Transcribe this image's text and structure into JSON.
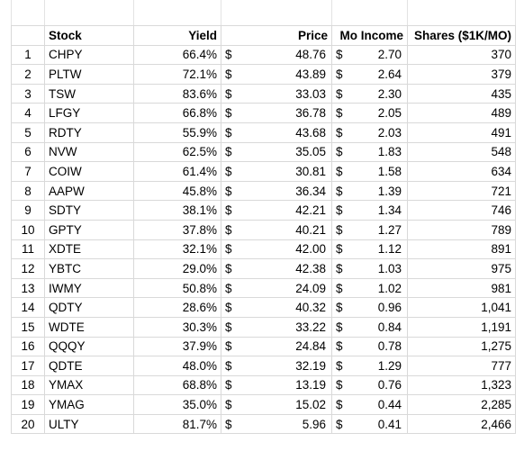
{
  "header": {
    "stock": "Stock",
    "yield": "Yield",
    "price": "Price",
    "mo_income": "Mo Income",
    "shares": "Shares ($1K/MO)",
    "currency": "$"
  },
  "rows": [
    {
      "n": "1",
      "stock": "CHPY",
      "yield": "66.4%",
      "price": "48.76",
      "mo": "2.70",
      "shares": "370"
    },
    {
      "n": "2",
      "stock": "PLTW",
      "yield": "72.1%",
      "price": "43.89",
      "mo": "2.64",
      "shares": "379"
    },
    {
      "n": "3",
      "stock": "TSW",
      "yield": "83.6%",
      "price": "33.03",
      "mo": "2.30",
      "shares": "435"
    },
    {
      "n": "4",
      "stock": "LFGY",
      "yield": "66.8%",
      "price": "36.78",
      "mo": "2.05",
      "shares": "489"
    },
    {
      "n": "5",
      "stock": "RDTY",
      "yield": "55.9%",
      "price": "43.68",
      "mo": "2.03",
      "shares": "491"
    },
    {
      "n": "6",
      "stock": "NVW",
      "yield": "62.5%",
      "price": "35.05",
      "mo": "1.83",
      "shares": "548"
    },
    {
      "n": "7",
      "stock": "COIW",
      "yield": "61.4%",
      "price": "30.81",
      "mo": "1.58",
      "shares": "634"
    },
    {
      "n": "8",
      "stock": "AAPW",
      "yield": "45.8%",
      "price": "36.34",
      "mo": "1.39",
      "shares": "721"
    },
    {
      "n": "9",
      "stock": "SDTY",
      "yield": "38.1%",
      "price": "42.21",
      "mo": "1.34",
      "shares": "746"
    },
    {
      "n": "10",
      "stock": "GPTY",
      "yield": "37.8%",
      "price": "40.21",
      "mo": "1.27",
      "shares": "789"
    },
    {
      "n": "11",
      "stock": "XDTE",
      "yield": "32.1%",
      "price": "42.00",
      "mo": "1.12",
      "shares": "891"
    },
    {
      "n": "12",
      "stock": "YBTC",
      "yield": "29.0%",
      "price": "42.38",
      "mo": "1.03",
      "shares": "975"
    },
    {
      "n": "13",
      "stock": "IWMY",
      "yield": "50.8%",
      "price": "24.09",
      "mo": "1.02",
      "shares": "981"
    },
    {
      "n": "14",
      "stock": "QDTY",
      "yield": "28.6%",
      "price": "40.32",
      "mo": "0.96",
      "shares": "1,041"
    },
    {
      "n": "15",
      "stock": "WDTE",
      "yield": "30.3%",
      "price": "33.22",
      "mo": "0.84",
      "shares": "1,191"
    },
    {
      "n": "16",
      "stock": "QQQY",
      "yield": "37.9%",
      "price": "24.84",
      "mo": "0.78",
      "shares": "1,275"
    },
    {
      "n": "17",
      "stock": "QDTE",
      "yield": "48.0%",
      "price": "32.19",
      "mo": "1.29",
      "shares": "777"
    },
    {
      "n": "18",
      "stock": "YMAX",
      "yield": "68.8%",
      "price": "13.19",
      "mo": "0.76",
      "shares": "1,323"
    },
    {
      "n": "19",
      "stock": "YMAG",
      "yield": "35.0%",
      "price": "15.02",
      "mo": "0.44",
      "shares": "2,285"
    },
    {
      "n": "20",
      "stock": "ULTY",
      "yield": "81.7%",
      "price": "5.96",
      "mo": "0.41",
      "shares": "2,466"
    }
  ]
}
